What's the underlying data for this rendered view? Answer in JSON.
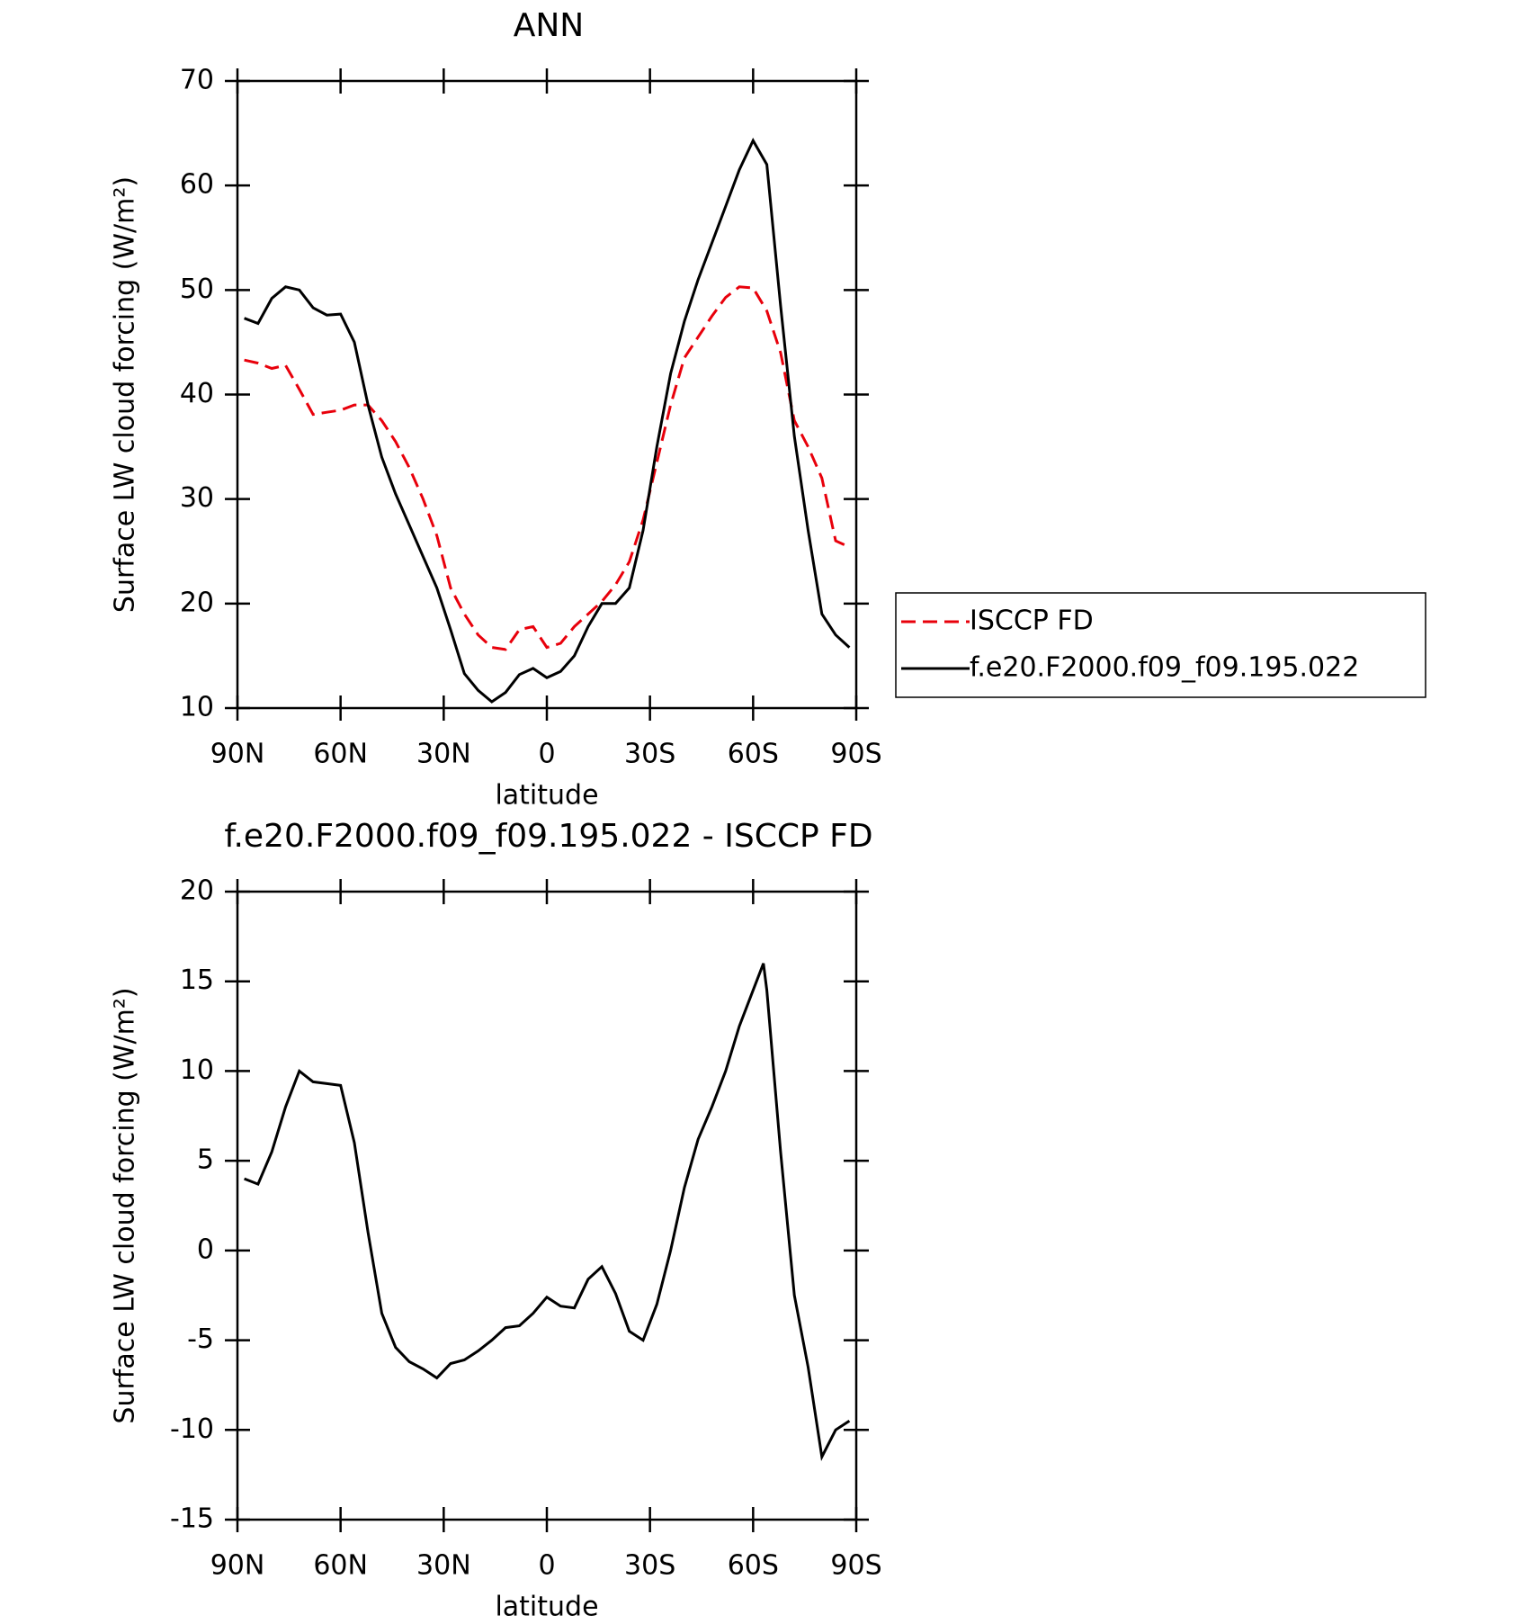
{
  "chart_data": [
    {
      "type": "line",
      "title": "ANN",
      "x_label": "latitude",
      "y_label": "Surface LW cloud forcing (W/m²)",
      "x": [
        88,
        84,
        80,
        76,
        72,
        68,
        64,
        60,
        56,
        52,
        48,
        44,
        40,
        36,
        32,
        28,
        24,
        20,
        16,
        12,
        8,
        4,
        0,
        -4,
        -8,
        -12,
        -16,
        -20,
        -24,
        -28,
        -32,
        -36,
        -40,
        -44,
        -48,
        -52,
        -56,
        -60,
        -64,
        -68,
        -72,
        -76,
        -80,
        -84,
        -88
      ],
      "series": [
        {
          "name": "ISCCP FD",
          "color": "#e8000b",
          "dash": true,
          "values": [
            43.3,
            43.0,
            42.5,
            42.8,
            40.5,
            38.1,
            38.3,
            38.5,
            39.0,
            39.0,
            37.5,
            35.5,
            33.0,
            30.0,
            26.5,
            21.5,
            19.0,
            17.0,
            15.8,
            15.6,
            17.5,
            17.8,
            15.8,
            16.2,
            17.8,
            19.0,
            20.2,
            21.8,
            24.0,
            28.0,
            33.5,
            39.0,
            43.5,
            45.5,
            47.5,
            49.3,
            50.3,
            50.2,
            48.0,
            44.0,
            37.5,
            35.0,
            32.0,
            26.0,
            25.4
          ]
        },
        {
          "name": "f.e20.F2000.f09_f09.195.022",
          "color": "#000000",
          "dash": false,
          "values": [
            47.3,
            46.8,
            49.2,
            50.3,
            50.0,
            48.3,
            47.6,
            47.7,
            45.0,
            39.0,
            34.0,
            30.5,
            27.5,
            24.5,
            21.5,
            17.5,
            13.3,
            11.7,
            10.6,
            11.5,
            13.2,
            13.8,
            12.9,
            13.5,
            15.0,
            17.8,
            20.0,
            20.0,
            21.5,
            27.0,
            35.0,
            42.0,
            47.0,
            51.0,
            54.5,
            58.0,
            61.5,
            64.3,
            62.0,
            48.5,
            36.0,
            27.0,
            19.0,
            17.0,
            15.8
          ]
        }
      ],
      "xlim": [
        90,
        -90
      ],
      "xticks": [
        {
          "value": 90,
          "label": "90N"
        },
        {
          "value": 60,
          "label": "60N"
        },
        {
          "value": 30,
          "label": "30N"
        },
        0,
        {
          "value": -30,
          "label": "30S"
        },
        {
          "value": -60,
          "label": "60S"
        },
        {
          "value": -90,
          "label": "90S"
        }
      ],
      "ylim": [
        10,
        70
      ],
      "yticks": [
        10,
        20,
        30,
        40,
        50,
        60,
        70
      ],
      "legend": "right"
    },
    {
      "type": "line",
      "title": "f.e20.F2000.f09_f09.195.022 - ISCCP FD",
      "x_label": "latitude",
      "y_label": "Surface LW cloud forcing (W/m²)",
      "x": [
        88,
        84,
        80,
        76,
        72,
        68,
        64,
        60,
        56,
        52,
        48,
        44,
        40,
        36,
        32,
        28,
        24,
        20,
        16,
        12,
        8,
        4,
        0,
        -4,
        -8,
        -12,
        -16,
        -20,
        -24,
        -28,
        -32,
        -36,
        -40,
        -44,
        -48,
        -52,
        -56,
        -60,
        -63,
        -64,
        -68,
        -72,
        -76,
        -80,
        -84,
        -88
      ],
      "color": "#000000",
      "values": [
        4.0,
        3.7,
        5.5,
        8.0,
        10.0,
        9.4,
        9.3,
        9.2,
        6.0,
        1.0,
        -3.5,
        -5.4,
        -6.2,
        -6.6,
        -7.1,
        -6.3,
        -6.1,
        -5.6,
        -5.0,
        -4.3,
        -4.2,
        -3.5,
        -2.6,
        -3.1,
        -3.2,
        -1.6,
        -0.9,
        -2.4,
        -4.5,
        -5.0,
        -3.0,
        0.0,
        3.5,
        6.2,
        8.0,
        10.0,
        12.5,
        14.5,
        16.0,
        14.5,
        5.5,
        -2.5,
        -6.5,
        -11.5,
        -10.0,
        -9.5
      ],
      "xlim": [
        90,
        -90
      ],
      "xticks": [
        {
          "value": 90,
          "label": "90N"
        },
        {
          "value": 60,
          "label": "60N"
        },
        {
          "value": 30,
          "label": "30N"
        },
        0,
        {
          "value": -30,
          "label": "30S"
        },
        {
          "value": -60,
          "label": "60S"
        },
        {
          "value": -90,
          "label": "90S"
        }
      ],
      "ylim": [
        -15,
        20
      ],
      "yticks": [
        -15,
        -10,
        -5,
        0,
        5,
        10,
        15,
        20
      ]
    }
  ]
}
